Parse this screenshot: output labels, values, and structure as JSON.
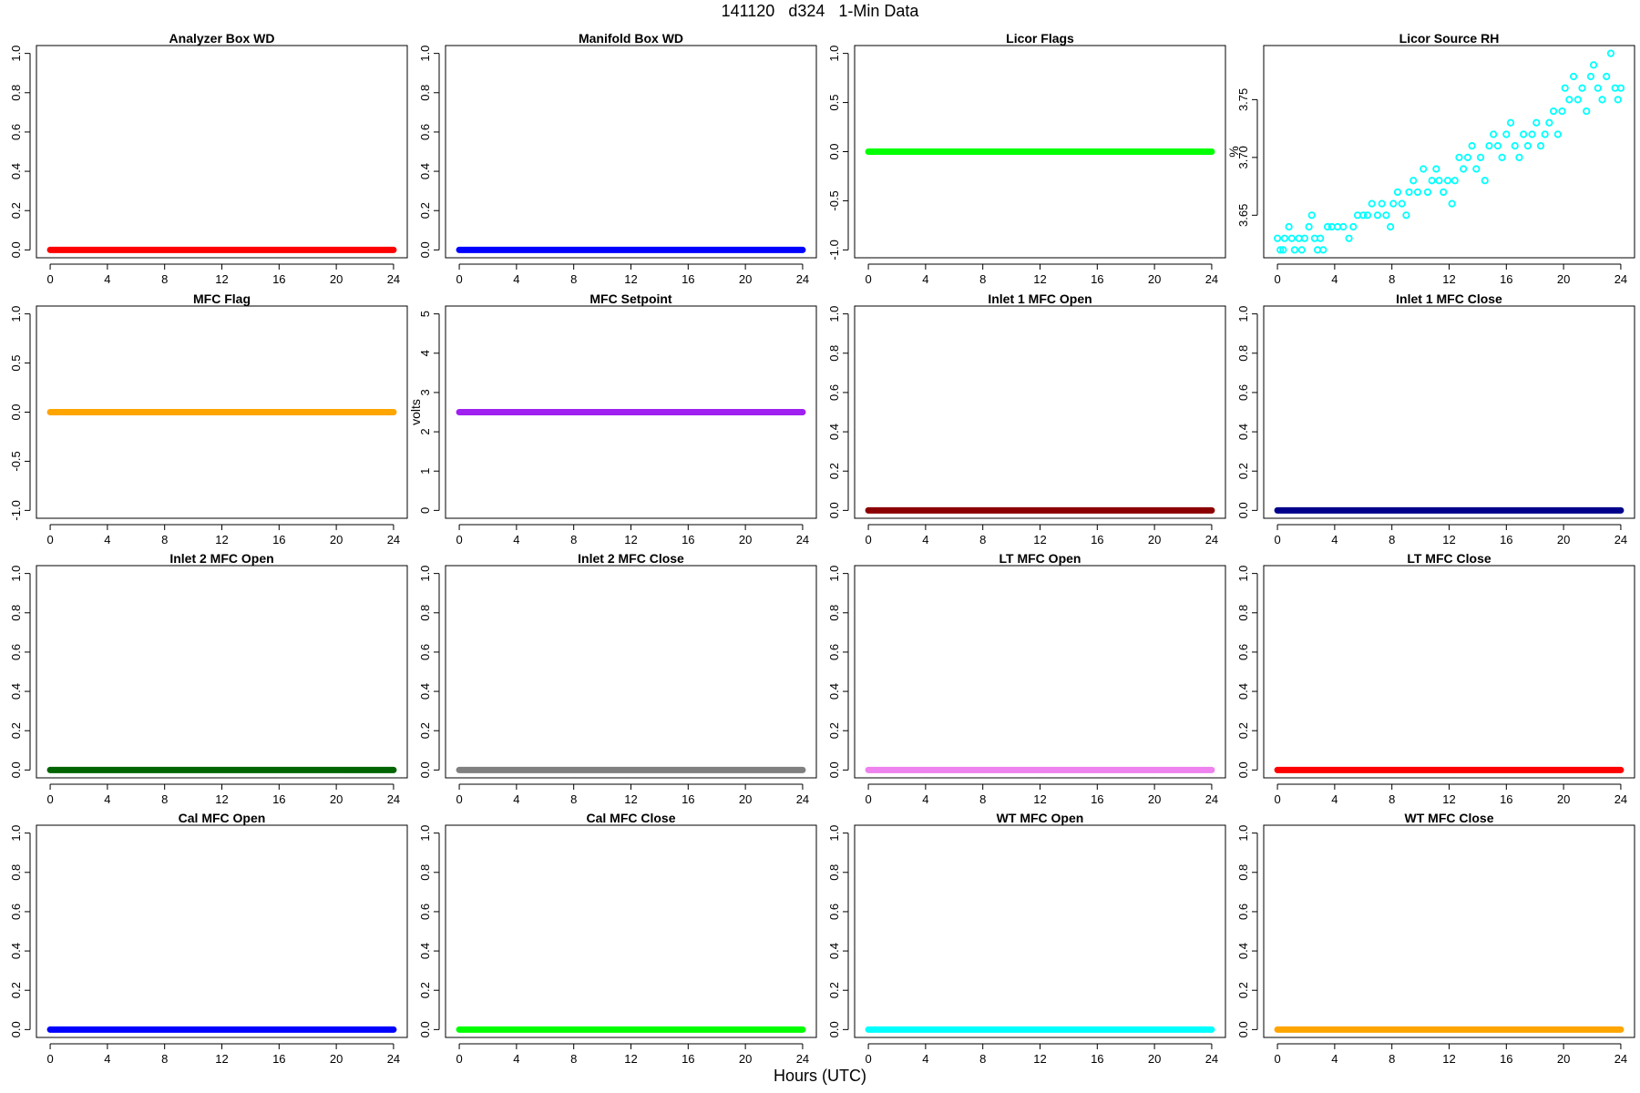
{
  "figure": {
    "title": "141120   d324   1-Min Data",
    "xlabel": "Hours (UTC)"
  },
  "chart_data": [
    {
      "type": "scatter",
      "title": "Analyzer Box WD",
      "ylabel": "",
      "color": "#ff0000",
      "xlim": [
        0,
        24
      ],
      "ylim": [
        0,
        1
      ],
      "xticks": [
        0,
        4,
        8,
        12,
        16,
        20,
        24
      ],
      "yticks": [
        0,
        0.2,
        0.4,
        0.6,
        0.8,
        1.0
      ],
      "ytick_labels": [
        "0.0",
        "0.2",
        "0.4",
        "0.6",
        "0.8",
        "1.0"
      ],
      "series": [
        {
          "constant": 0
        }
      ]
    },
    {
      "type": "scatter",
      "title": "Manifold Box WD",
      "ylabel": "",
      "color": "#0000ff",
      "xlim": [
        0,
        24
      ],
      "ylim": [
        0,
        1
      ],
      "xticks": [
        0,
        4,
        8,
        12,
        16,
        20,
        24
      ],
      "yticks": [
        0,
        0.2,
        0.4,
        0.6,
        0.8,
        1.0
      ],
      "ytick_labels": [
        "0.0",
        "0.2",
        "0.4",
        "0.6",
        "0.8",
        "1.0"
      ],
      "series": [
        {
          "constant": 0
        }
      ]
    },
    {
      "type": "scatter",
      "title": "Licor Flags",
      "ylabel": "",
      "color": "#00ff00",
      "xlim": [
        0,
        24
      ],
      "ylim": [
        -1,
        1
      ],
      "xticks": [
        0,
        4,
        8,
        12,
        16,
        20,
        24
      ],
      "yticks": [
        -1,
        -0.5,
        0,
        0.5,
        1
      ],
      "ytick_labels": [
        "-1.0",
        "-0.5",
        "0.0",
        "0.5",
        "1.0"
      ],
      "series": [
        {
          "constant": 0
        }
      ]
    },
    {
      "type": "scatter",
      "title": "Licor Source RH",
      "ylabel": "%",
      "color": "#00ffff",
      "xlim": [
        0,
        24
      ],
      "ylim": [
        3.62,
        3.79
      ],
      "xticks": [
        0,
        4,
        8,
        12,
        16,
        20,
        24
      ],
      "yticks": [
        3.65,
        3.7,
        3.75
      ],
      "ytick_labels": [
        "3.65",
        "3.70",
        "3.75"
      ],
      "series": [
        {
          "points": [
            [
              0,
              3.63
            ],
            [
              0.2,
              3.62
            ],
            [
              0.4,
              3.62
            ],
            [
              0.5,
              3.63
            ],
            [
              0.8,
              3.64
            ],
            [
              1.0,
              3.63
            ],
            [
              1.2,
              3.62
            ],
            [
              1.5,
              3.63
            ],
            [
              1.7,
              3.62
            ],
            [
              1.9,
              3.63
            ],
            [
              2.2,
              3.64
            ],
            [
              2.4,
              3.65
            ],
            [
              2.6,
              3.63
            ],
            [
              2.8,
              3.62
            ],
            [
              3.0,
              3.63
            ],
            [
              3.2,
              3.62
            ],
            [
              3.5,
              3.64
            ],
            [
              3.8,
              3.64
            ],
            [
              4.2,
              3.64
            ],
            [
              4.6,
              3.64
            ],
            [
              5.0,
              3.63
            ],
            [
              5.3,
              3.64
            ],
            [
              5.6,
              3.65
            ],
            [
              6.0,
              3.65
            ],
            [
              6.3,
              3.65
            ],
            [
              6.6,
              3.66
            ],
            [
              7.0,
              3.65
            ],
            [
              7.3,
              3.66
            ],
            [
              7.6,
              3.65
            ],
            [
              7.9,
              3.64
            ],
            [
              8.1,
              3.66
            ],
            [
              8.4,
              3.67
            ],
            [
              8.7,
              3.66
            ],
            [
              9.0,
              3.65
            ],
            [
              9.2,
              3.67
            ],
            [
              9.5,
              3.68
            ],
            [
              9.8,
              3.67
            ],
            [
              10.2,
              3.69
            ],
            [
              10.5,
              3.67
            ],
            [
              10.8,
              3.68
            ],
            [
              11.1,
              3.69
            ],
            [
              11.3,
              3.68
            ],
            [
              11.6,
              3.67
            ],
            [
              11.9,
              3.68
            ],
            [
              12.2,
              3.66
            ],
            [
              12.4,
              3.68
            ],
            [
              12.7,
              3.7
            ],
            [
              13.0,
              3.69
            ],
            [
              13.3,
              3.7
            ],
            [
              13.6,
              3.71
            ],
            [
              13.9,
              3.69
            ],
            [
              14.2,
              3.7
            ],
            [
              14.5,
              3.68
            ],
            [
              14.8,
              3.71
            ],
            [
              15.1,
              3.72
            ],
            [
              15.4,
              3.71
            ],
            [
              15.7,
              3.7
            ],
            [
              16.0,
              3.72
            ],
            [
              16.3,
              3.73
            ],
            [
              16.6,
              3.71
            ],
            [
              16.9,
              3.7
            ],
            [
              17.2,
              3.72
            ],
            [
              17.5,
              3.71
            ],
            [
              17.8,
              3.72
            ],
            [
              18.1,
              3.73
            ],
            [
              18.4,
              3.71
            ],
            [
              18.7,
              3.72
            ],
            [
              19.0,
              3.73
            ],
            [
              19.3,
              3.74
            ],
            [
              19.6,
              3.72
            ],
            [
              19.9,
              3.74
            ],
            [
              20.1,
              3.76
            ],
            [
              20.4,
              3.75
            ],
            [
              20.7,
              3.77
            ],
            [
              21.0,
              3.75
            ],
            [
              21.3,
              3.76
            ],
            [
              21.6,
              3.74
            ],
            [
              21.9,
              3.77
            ],
            [
              22.1,
              3.78
            ],
            [
              22.4,
              3.76
            ],
            [
              22.7,
              3.75
            ],
            [
              23.0,
              3.77
            ],
            [
              23.3,
              3.79
            ],
            [
              23.6,
              3.76
            ],
            [
              23.8,
              3.75
            ],
            [
              24.0,
              3.76
            ]
          ]
        }
      ]
    },
    {
      "type": "scatter",
      "title": "MFC Flag",
      "ylabel": "",
      "color": "#ffa500",
      "xlim": [
        0,
        24
      ],
      "ylim": [
        -1,
        1
      ],
      "xticks": [
        0,
        4,
        8,
        12,
        16,
        20,
        24
      ],
      "yticks": [
        -1,
        -0.5,
        0,
        0.5,
        1
      ],
      "ytick_labels": [
        "-1.0",
        "-0.5",
        "0.0",
        "0.5",
        "1.0"
      ],
      "series": [
        {
          "constant": 0
        }
      ]
    },
    {
      "type": "scatter",
      "title": "MFC Setpoint",
      "ylabel": "volts",
      "color": "#a020f0",
      "xlim": [
        0,
        24
      ],
      "ylim": [
        0,
        5
      ],
      "xticks": [
        0,
        4,
        8,
        12,
        16,
        20,
        24
      ],
      "yticks": [
        0,
        1,
        2,
        3,
        4,
        5
      ],
      "ytick_labels": [
        "0",
        "1",
        "2",
        "3",
        "4",
        "5"
      ],
      "series": [
        {
          "constant": 2.5
        }
      ]
    },
    {
      "type": "scatter",
      "title": "Inlet 1 MFC Open",
      "ylabel": "",
      "color": "#8b0000",
      "xlim": [
        0,
        24
      ],
      "ylim": [
        0,
        1
      ],
      "xticks": [
        0,
        4,
        8,
        12,
        16,
        20,
        24
      ],
      "yticks": [
        0,
        0.2,
        0.4,
        0.6,
        0.8,
        1.0
      ],
      "ytick_labels": [
        "0.0",
        "0.2",
        "0.4",
        "0.6",
        "0.8",
        "1.0"
      ],
      "series": [
        {
          "constant": 0
        }
      ]
    },
    {
      "type": "scatter",
      "title": "Inlet 1 MFC Close",
      "ylabel": "",
      "color": "#00008b",
      "xlim": [
        0,
        24
      ],
      "ylim": [
        0,
        1
      ],
      "xticks": [
        0,
        4,
        8,
        12,
        16,
        20,
        24
      ],
      "yticks": [
        0,
        0.2,
        0.4,
        0.6,
        0.8,
        1.0
      ],
      "ytick_labels": [
        "0.0",
        "0.2",
        "0.4",
        "0.6",
        "0.8",
        "1.0"
      ],
      "series": [
        {
          "constant": 0
        }
      ]
    },
    {
      "type": "scatter",
      "title": "Inlet 2 MFC Open",
      "ylabel": "",
      "color": "#006400",
      "xlim": [
        0,
        24
      ],
      "ylim": [
        0,
        1
      ],
      "xticks": [
        0,
        4,
        8,
        12,
        16,
        20,
        24
      ],
      "yticks": [
        0,
        0.2,
        0.4,
        0.6,
        0.8,
        1.0
      ],
      "ytick_labels": [
        "0.0",
        "0.2",
        "0.4",
        "0.6",
        "0.8",
        "1.0"
      ],
      "series": [
        {
          "constant": 0
        }
      ]
    },
    {
      "type": "scatter",
      "title": "Inlet 2 MFC Close",
      "ylabel": "",
      "color": "#808080",
      "xlim": [
        0,
        24
      ],
      "ylim": [
        0,
        1
      ],
      "xticks": [
        0,
        4,
        8,
        12,
        16,
        20,
        24
      ],
      "yticks": [
        0,
        0.2,
        0.4,
        0.6,
        0.8,
        1.0
      ],
      "ytick_labels": [
        "0.0",
        "0.2",
        "0.4",
        "0.6",
        "0.8",
        "1.0"
      ],
      "series": [
        {
          "constant": 0
        }
      ]
    },
    {
      "type": "scatter",
      "title": "LT MFC Open",
      "ylabel": "",
      "color": "#ee82ee",
      "xlim": [
        0,
        24
      ],
      "ylim": [
        0,
        1
      ],
      "xticks": [
        0,
        4,
        8,
        12,
        16,
        20,
        24
      ],
      "yticks": [
        0,
        0.2,
        0.4,
        0.6,
        0.8,
        1.0
      ],
      "ytick_labels": [
        "0.0",
        "0.2",
        "0.4",
        "0.6",
        "0.8",
        "1.0"
      ],
      "series": [
        {
          "constant": 0
        }
      ]
    },
    {
      "type": "scatter",
      "title": "LT MFC Close",
      "ylabel": "",
      "color": "#ff0000",
      "xlim": [
        0,
        24
      ],
      "ylim": [
        0,
        1
      ],
      "xticks": [
        0,
        4,
        8,
        12,
        16,
        20,
        24
      ],
      "yticks": [
        0,
        0.2,
        0.4,
        0.6,
        0.8,
        1.0
      ],
      "ytick_labels": [
        "0.0",
        "0.2",
        "0.4",
        "0.6",
        "0.8",
        "1.0"
      ],
      "series": [
        {
          "constant": 0
        }
      ]
    },
    {
      "type": "scatter",
      "title": "Cal MFC Open",
      "ylabel": "",
      "color": "#0000ff",
      "xlim": [
        0,
        24
      ],
      "ylim": [
        0,
        1
      ],
      "xticks": [
        0,
        4,
        8,
        12,
        16,
        20,
        24
      ],
      "yticks": [
        0,
        0.2,
        0.4,
        0.6,
        0.8,
        1.0
      ],
      "ytick_labels": [
        "0.0",
        "0.2",
        "0.4",
        "0.6",
        "0.8",
        "1.0"
      ],
      "series": [
        {
          "constant": 0
        }
      ]
    },
    {
      "type": "scatter",
      "title": "Cal MFC Close",
      "ylabel": "",
      "color": "#00ff00",
      "xlim": [
        0,
        24
      ],
      "ylim": [
        0,
        1
      ],
      "xticks": [
        0,
        4,
        8,
        12,
        16,
        20,
        24
      ],
      "yticks": [
        0,
        0.2,
        0.4,
        0.6,
        0.8,
        1.0
      ],
      "ytick_labels": [
        "0.0",
        "0.2",
        "0.4",
        "0.6",
        "0.8",
        "1.0"
      ],
      "series": [
        {
          "constant": 0
        }
      ]
    },
    {
      "type": "scatter",
      "title": "WT MFC Open",
      "ylabel": "",
      "color": "#00ffff",
      "xlim": [
        0,
        24
      ],
      "ylim": [
        0,
        1
      ],
      "xticks": [
        0,
        4,
        8,
        12,
        16,
        20,
        24
      ],
      "yticks": [
        0,
        0.2,
        0.4,
        0.6,
        0.8,
        1.0
      ],
      "ytick_labels": [
        "0.0",
        "0.2",
        "0.4",
        "0.6",
        "0.8",
        "1.0"
      ],
      "series": [
        {
          "constant": 0
        }
      ]
    },
    {
      "type": "scatter",
      "title": "WT MFC Close",
      "ylabel": "",
      "color": "#ffa500",
      "xlim": [
        0,
        24
      ],
      "ylim": [
        0,
        1
      ],
      "xticks": [
        0,
        4,
        8,
        12,
        16,
        20,
        24
      ],
      "yticks": [
        0,
        0.2,
        0.4,
        0.6,
        0.8,
        1.0
      ],
      "ytick_labels": [
        "0.0",
        "0.2",
        "0.4",
        "0.6",
        "0.8",
        "1.0"
      ],
      "series": [
        {
          "constant": 0
        }
      ]
    }
  ]
}
